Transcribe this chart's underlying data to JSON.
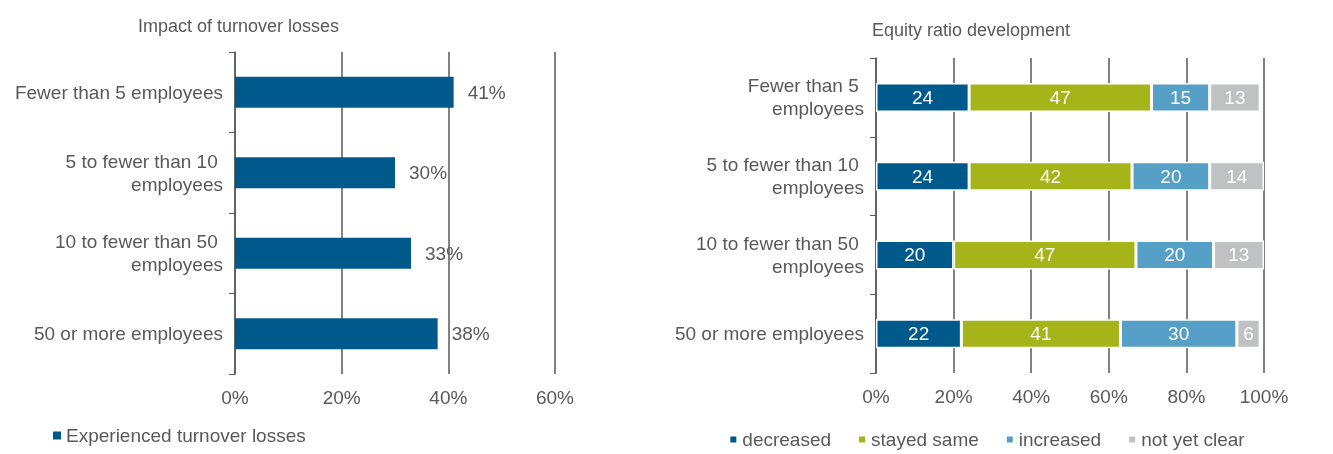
{
  "chart_data": [
    {
      "type": "bar",
      "orientation": "horizontal",
      "title": "Impact of turnover losses",
      "categories": [
        "Fewer than 5 employees",
        "5 to fewer than 10 employees",
        "10 to fewer than 50 employees",
        "50 or more employees"
      ],
      "series": [
        {
          "name": "Experienced turnover losses",
          "color": "#00598b",
          "values": [
            41,
            30,
            33,
            38
          ],
          "value_labels": [
            "41%",
            "30%",
            "33%",
            "38%"
          ]
        }
      ],
      "xlim": [
        0,
        60
      ],
      "xticks": [
        {
          "value": 0,
          "label": "0%"
        },
        {
          "value": 20,
          "label": "20%"
        },
        {
          "value": 40,
          "label": "40%"
        },
        {
          "value": 60,
          "label": "60%"
        }
      ],
      "grid": "x",
      "legend": "bottom left"
    },
    {
      "type": "bar",
      "orientation": "horizontal",
      "stacked": true,
      "title": "Equity ratio development",
      "categories": [
        "Fewer than 5 employees",
        "5 to fewer than 10 employees",
        "10 to fewer than 50 employees",
        "50 or more employees"
      ],
      "series": [
        {
          "name": "decreased",
          "color": "#00598b",
          "values": [
            24,
            24,
            20,
            22
          ]
        },
        {
          "name": "stayed same",
          "color": "#a5b519",
          "values": [
            47,
            42,
            47,
            41
          ]
        },
        {
          "name": "increased",
          "color": "#56a0c8",
          "values": [
            15,
            20,
            20,
            30
          ]
        },
        {
          "name": "not yet clear",
          "color": "#bfc1c3",
          "values": [
            13,
            14,
            13,
            6
          ]
        }
      ],
      "data_labels": true,
      "xlim": [
        0,
        100
      ],
      "xticks": [
        {
          "value": 0,
          "label": "0%"
        },
        {
          "value": 20,
          "label": "20%"
        },
        {
          "value": 40,
          "label": "40%"
        },
        {
          "value": 60,
          "label": "60%"
        },
        {
          "value": 80,
          "label": "80%"
        },
        {
          "value": 100,
          "label": "100%"
        }
      ],
      "grid": "x",
      "legend": "bottom"
    }
  ]
}
